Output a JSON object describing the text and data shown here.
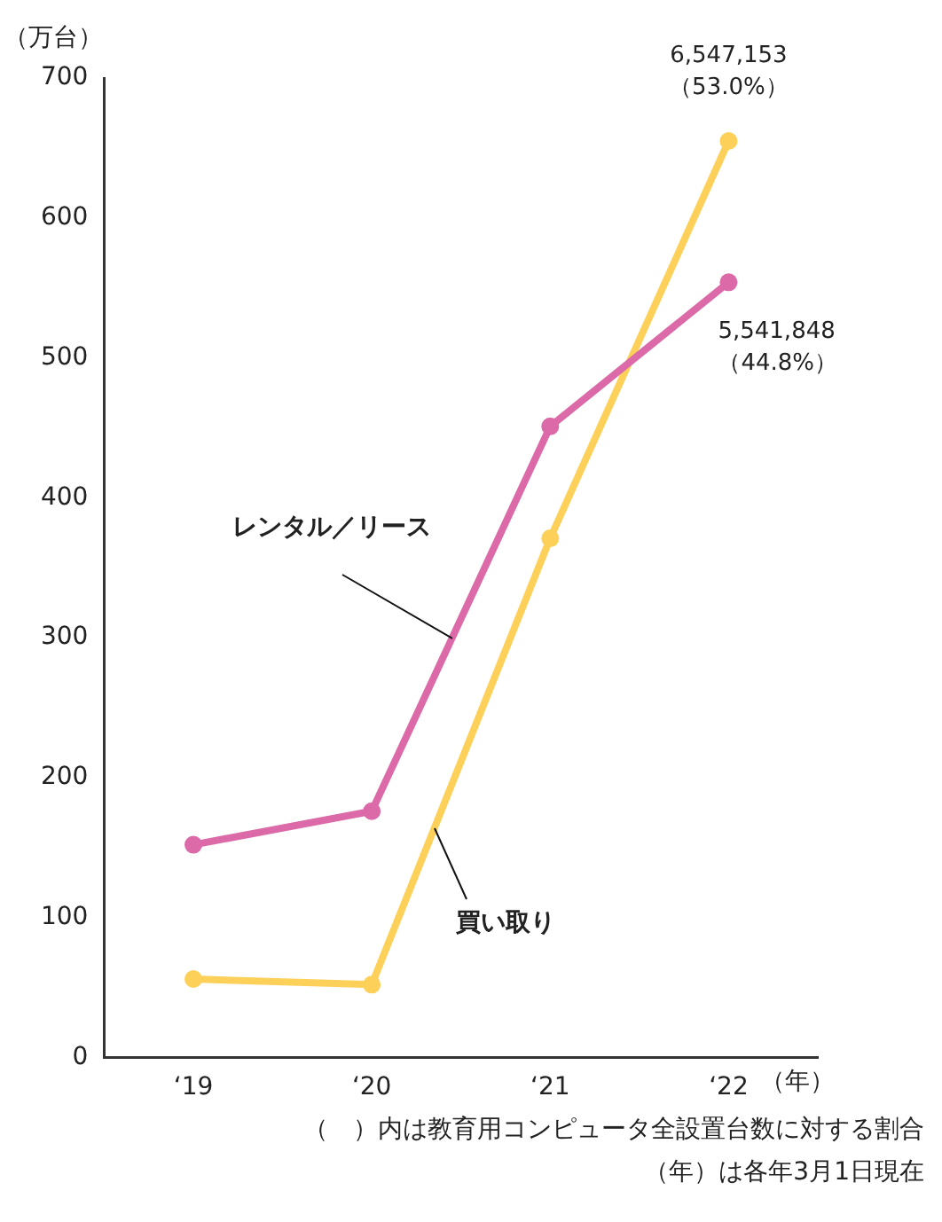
{
  "chart_data": {
    "type": "line",
    "ylabel": "（万台）",
    "xlabel": "（年）",
    "categories": [
      "‘19",
      "‘20",
      "‘21",
      "‘22"
    ],
    "series": [
      {
        "name": "レンタル／リース",
        "color": "#dc6aa8",
        "values": [
          152,
          176,
          451,
          554
        ]
      },
      {
        "name": "買い取り",
        "color": "#fdd05a",
        "values": [
          56,
          52,
          371,
          655
        ]
      }
    ],
    "ylim": [
      0,
      700
    ],
    "yticks": [
      0,
      100,
      200,
      300,
      400,
      500,
      600,
      700
    ],
    "grid": false,
    "legend": false,
    "marker": "circle",
    "line_style": "solid",
    "annotations": [
      {
        "text": "6,547,153\n（53.0%）",
        "x": "‘22",
        "y": 655
      },
      {
        "text": "5,541,848\n（44.8%）",
        "x": "‘22",
        "y": 554
      },
      "（　）内は教育用コンピュータ全設置台数に対する割合",
      "（年）は各年3月1日現在"
    ]
  }
}
